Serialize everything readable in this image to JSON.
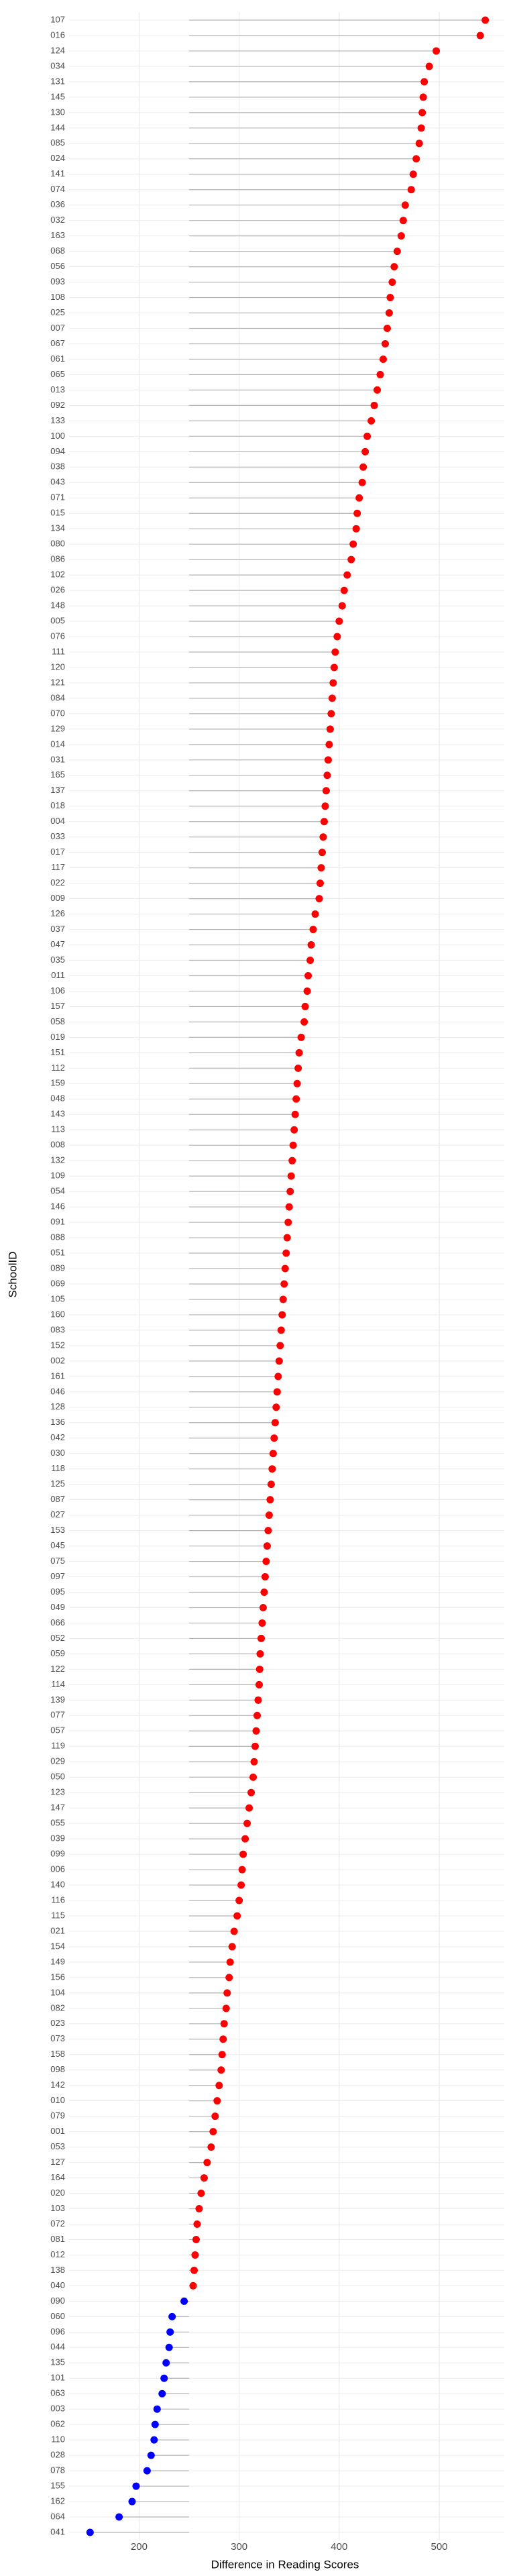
{
  "chart_data": {
    "type": "lollipop",
    "x_label": "Difference in Reading Scores",
    "y_label": "SchoolID",
    "categories": [
      "107",
      "016",
      "124",
      "034",
      "131",
      "145",
      "130",
      "144",
      "085",
      "024",
      "141",
      "074",
      "036",
      "032",
      "163",
      "068",
      "056",
      "093",
      "108",
      "025",
      "007",
      "067",
      "061",
      "065",
      "013",
      "092",
      "133",
      "100",
      "094",
      "038",
      "043",
      "071",
      "015",
      "134",
      "080",
      "086",
      "102",
      "026",
      "148",
      "005",
      "076",
      "111",
      "120",
      "121",
      "084",
      "070",
      "129",
      "014",
      "031",
      "165",
      "137",
      "018",
      "004",
      "033",
      "017",
      "117",
      "022",
      "009",
      "126",
      "037",
      "047",
      "035",
      "011",
      "106",
      "157",
      "058",
      "019",
      "151",
      "112",
      "159",
      "048",
      "143",
      "113",
      "008",
      "132",
      "109",
      "054",
      "146",
      "091",
      "088",
      "051",
      "089",
      "069",
      "105",
      "160",
      "083",
      "152",
      "002",
      "161",
      "046",
      "128",
      "136",
      "042",
      "030",
      "118",
      "125",
      "087",
      "027",
      "153",
      "045",
      "075",
      "097",
      "095",
      "049",
      "066",
      "052",
      "059",
      "122",
      "114",
      "139",
      "077",
      "057",
      "119",
      "029",
      "050",
      "123",
      "147",
      "055",
      "039",
      "099",
      "006",
      "140",
      "116",
      "115",
      "021",
      "154",
      "149",
      "156",
      "104",
      "082",
      "023",
      "073",
      "158",
      "098",
      "142",
      "010",
      "079",
      "001",
      "053",
      "127",
      "164",
      "020",
      "103",
      "072",
      "081",
      "012",
      "138",
      "040",
      "090",
      "060",
      "096",
      "044",
      "135",
      "101",
      "063",
      "003",
      "062",
      "110",
      "028",
      "078",
      "155",
      "162",
      "064",
      "041"
    ],
    "values": [
      546,
      541,
      497,
      490,
      485,
      484,
      483,
      482,
      480,
      477,
      474,
      472,
      466,
      464,
      462,
      458,
      455,
      453,
      451,
      450,
      448,
      446,
      444,
      441,
      438,
      435,
      432,
      428,
      426,
      424,
      423,
      420,
      418,
      417,
      414,
      412,
      408,
      405,
      403,
      400,
      398,
      396,
      395,
      394,
      393,
      392,
      391,
      390,
      389,
      388,
      387,
      386,
      385,
      384,
      383,
      382,
      381,
      380,
      376,
      374,
      372,
      371,
      369,
      368,
      366,
      365,
      362,
      360,
      359,
      358,
      357,
      356,
      355,
      354,
      353,
      352,
      351,
      350,
      349,
      348,
      347,
      346,
      345,
      344,
      343,
      342,
      341,
      340,
      339,
      338,
      337,
      336,
      335,
      334,
      333,
      332,
      331,
      330,
      329,
      328,
      327,
      326,
      325,
      324,
      323,
      322,
      321,
      320.5,
      320,
      319,
      318,
      317,
      316,
      315,
      314,
      312,
      310,
      308,
      306,
      304,
      303,
      302,
      300,
      298,
      295,
      293,
      291,
      290,
      288,
      287,
      285,
      284,
      283,
      282,
      280,
      278,
      276,
      274,
      272,
      268,
      265,
      262,
      260,
      258,
      257,
      256,
      255,
      254,
      245,
      233,
      231,
      230,
      227,
      225,
      223,
      218,
      216,
      215,
      212,
      208,
      197,
      193,
      180,
      151
    ],
    "baseline": 250,
    "color_above": "#ff0000",
    "color_below": "#0000ff",
    "stem_color": "#b3b3b3",
    "xlim": [
      130,
      565
    ],
    "xticks": [
      200,
      300,
      400,
      500
    ],
    "grid": true
  }
}
